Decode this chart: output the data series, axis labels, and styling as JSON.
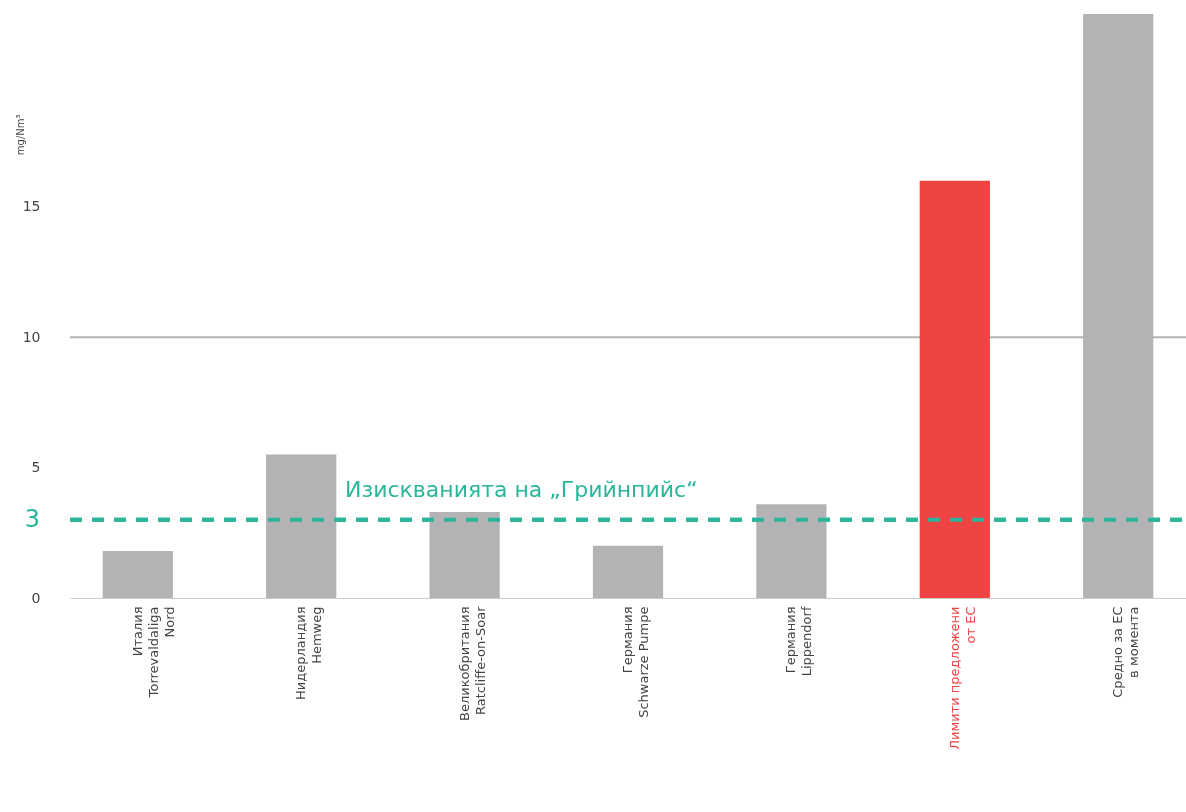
{
  "chart_data": {
    "type": "bar",
    "ylabel": "mg/Nm³",
    "categories": [
      "Италия\nTorrevaldaliga\nNord",
      "Нидерландия\nHemweg",
      "Великобритания\nRatcliffe-on-Soar",
      "Германия\nSchwarze Pumpe",
      "Германия\nLippendorf",
      "Лимити предложени\nот ЕС",
      "Средно за ЕС\nв момента"
    ],
    "values": [
      1.8,
      5.5,
      3.3,
      2.0,
      3.6,
      16.0,
      22.4
    ],
    "colors": [
      "#b3b3b5",
      "#b3b3b5",
      "#b3b3b5",
      "#b3b3b5",
      "#b3b3b5",
      "#ef4444",
      "#b3b3b5"
    ],
    "ylim": [
      0,
      22.4
    ],
    "yticks": [
      0,
      5,
      10,
      15
    ],
    "ref_lines": [
      {
        "axis": "y",
        "value": 10,
        "label": null,
        "color": "#b3b3b5",
        "line_style": "solid"
      },
      {
        "axis": "y",
        "value": 3,
        "label": "3",
        "color": "#2bb59a",
        "line_style": "dashed"
      }
    ],
    "annotations": [
      {
        "text": "Изискванията на „Грийнпийс“",
        "y": 3
      }
    ]
  }
}
